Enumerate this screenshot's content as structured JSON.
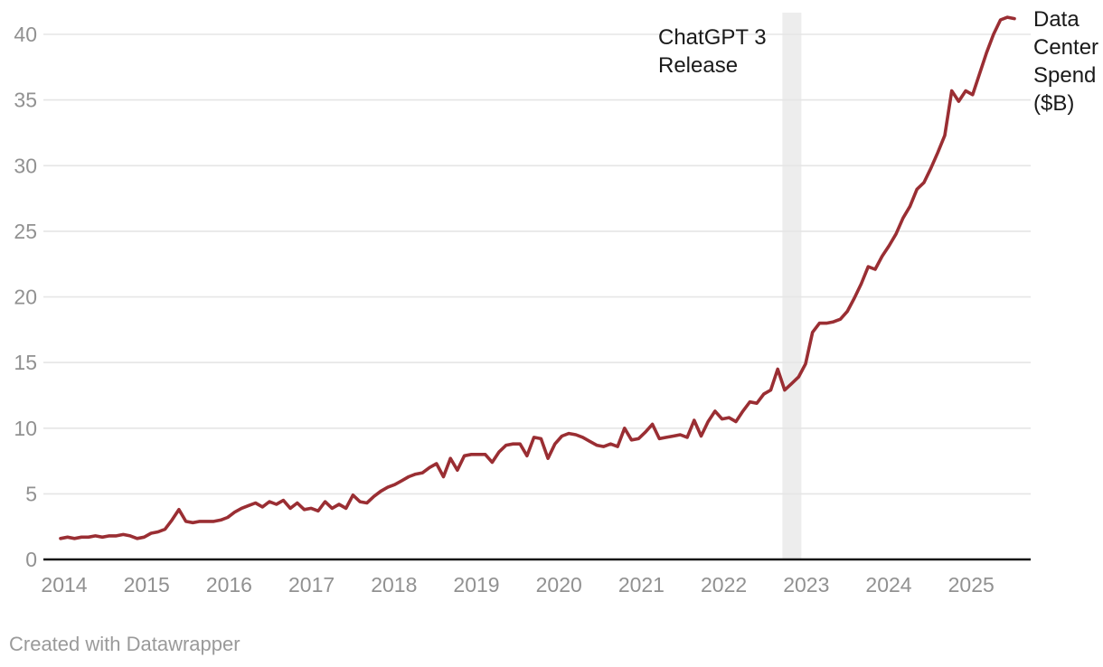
{
  "chart_data": {
    "type": "line",
    "title": "",
    "xlabel": "",
    "ylabel": "Data Center Spend ($B)",
    "grid": "horizontal",
    "legend_position": "none",
    "ylim": [
      0,
      41.5
    ],
    "x_range": [
      "2014-01",
      "2025-06"
    ],
    "y_ticks": [
      0,
      5,
      10,
      15,
      20,
      25,
      30,
      35,
      40
    ],
    "x_ticks": [
      2014,
      2015,
      2016,
      2017,
      2018,
      2019,
      2020,
      2021,
      2022,
      2023,
      2024,
      2025
    ],
    "series": [
      {
        "name": "Data Center Spend ($B)",
        "start": "2014-01",
        "frequency": "monthly",
        "values": [
          1.6,
          1.7,
          1.6,
          1.7,
          1.7,
          1.8,
          1.7,
          1.8,
          1.8,
          1.9,
          1.8,
          1.6,
          1.7,
          2.0,
          2.1,
          2.3,
          3.0,
          3.8,
          2.9,
          2.8,
          2.9,
          2.9,
          2.9,
          3.0,
          3.2,
          3.6,
          3.9,
          4.1,
          4.3,
          4.0,
          4.4,
          4.2,
          4.5,
          3.9,
          4.3,
          3.8,
          3.9,
          3.7,
          4.4,
          3.9,
          4.2,
          3.9,
          4.9,
          4.4,
          4.3,
          4.8,
          5.2,
          5.5,
          5.7,
          6.0,
          6.3,
          6.5,
          6.6,
          7.0,
          7.3,
          6.3,
          7.7,
          6.8,
          7.9,
          8.0,
          8.0,
          8.0,
          7.4,
          8.2,
          8.7,
          8.8,
          8.8,
          7.9,
          9.3,
          9.2,
          7.7,
          8.8,
          9.4,
          9.6,
          9.5,
          9.3,
          9.0,
          8.7,
          8.6,
          8.8,
          8.6,
          10.0,
          9.1,
          9.2,
          9.7,
          10.3,
          9.2,
          9.3,
          9.4,
          9.5,
          9.3,
          10.6,
          9.4,
          10.5,
          11.3,
          10.7,
          10.8,
          10.5,
          11.3,
          12.0,
          11.9,
          12.6,
          12.9,
          14.5,
          12.9,
          13.4,
          13.9,
          14.9,
          17.3,
          18.0,
          18.0,
          18.1,
          18.3,
          18.9,
          19.9,
          21.0,
          22.3,
          22.1,
          23.1,
          23.9,
          24.8,
          26.0,
          26.9,
          28.2,
          28.7,
          29.8,
          31.0,
          32.3,
          35.7,
          34.9,
          35.7,
          35.4,
          37.0,
          38.6,
          40.0,
          41.1,
          41.3,
          41.2
        ]
      }
    ],
    "annotations": {
      "text_lines": [
        "ChatGPT 3",
        "Release"
      ],
      "band": {
        "from_year": 2022.71,
        "to_year": 2022.94
      }
    }
  },
  "labels": {
    "annotation_line1": "ChatGPT 3",
    "annotation_line2": "Release",
    "right_label_lines": [
      "Data",
      "Center",
      "Spend",
      "($B)"
    ],
    "footer": "Created with Datawrapper"
  },
  "colors": {
    "line": "#9a2e33",
    "grid": "#e5e5e5",
    "axis": "#161616",
    "tick_text": "#919191",
    "band": "#ededed",
    "annotation_text": "#1a1a1a",
    "footer_text": "#9a9a9a",
    "background": "#ffffff"
  }
}
